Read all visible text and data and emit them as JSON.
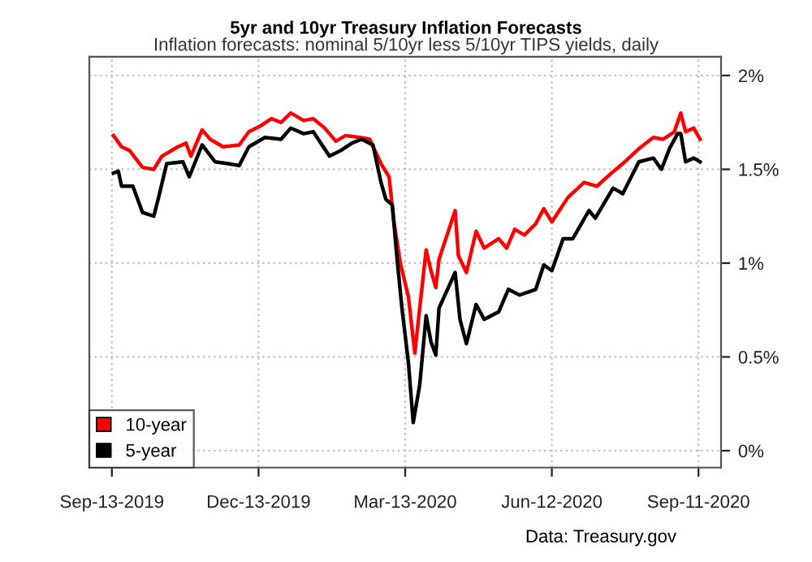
{
  "chart_data": {
    "type": "line",
    "title": "5yr and 10yr Treasury Inflation Forecasts",
    "subtitle": "Inflation forecasts: nominal 5/10yr less 5/10yr TIPS yields, daily",
    "annotations": [
      "Data: Treasury.gov"
    ],
    "xlim": [
      "2019-08-30",
      "2020-09-25"
    ],
    "xticks": [
      {
        "value": "2019-09-13",
        "label": "Sep-13-2019"
      },
      {
        "value": "2019-12-13",
        "label": "Dec-13-2019"
      },
      {
        "value": "2020-03-13",
        "label": "Mar-13-2020"
      },
      {
        "value": "2020-06-12",
        "label": "Jun-12-2020"
      },
      {
        "value": "2020-09-11",
        "label": "Sep-11-2020"
      }
    ],
    "ylim": [
      -0.09,
      2.1
    ],
    "yticks": [
      {
        "value": 0,
        "label": "0%"
      },
      {
        "value": 0.5,
        "label": "0.5%"
      },
      {
        "value": 1,
        "label": "1%"
      },
      {
        "value": 1.5,
        "label": "1.5%"
      },
      {
        "value": 2,
        "label": "2%"
      }
    ],
    "grid": true,
    "legend": "bottom left",
    "line_style": "solid",
    "series": [
      {
        "name": "10-year",
        "color": "#ff0000",
        "x": [
          "2019-09-14",
          "2019-09-19",
          "2019-09-24",
          "2019-10-02",
          "2019-10-09",
          "2019-10-14",
          "2019-10-24",
          "2019-10-29",
          "2019-11-01",
          "2019-11-08",
          "2019-11-13",
          "2019-11-21",
          "2019-12-01",
          "2019-12-07",
          "2019-12-14",
          "2019-12-21",
          "2019-12-27",
          "2020-01-02",
          "2020-01-10",
          "2020-01-16",
          "2020-01-23",
          "2020-01-30",
          "2020-02-05",
          "2020-02-14",
          "2020-02-20",
          "2020-02-27",
          "2020-03-03",
          "2020-03-06",
          "2020-03-10",
          "2020-03-15",
          "2020-03-19",
          "2020-03-22",
          "2020-03-26",
          "2020-03-29",
          "2020-04-01",
          "2020-04-03",
          "2020-04-13",
          "2020-04-15",
          "2020-04-20",
          "2020-04-26",
          "2020-05-01",
          "2020-05-10",
          "2020-05-15",
          "2020-05-20",
          "2020-05-26",
          "2020-06-02",
          "2020-06-07",
          "2020-06-12",
          "2020-06-22",
          "2020-07-02",
          "2020-07-10",
          "2020-07-19",
          "2020-07-26",
          "2020-08-05",
          "2020-08-14",
          "2020-08-20",
          "2020-08-27",
          "2020-08-31",
          "2020-09-03",
          "2020-09-08",
          "2020-09-12"
        ],
        "values": [
          1.68,
          1.62,
          1.6,
          1.51,
          1.5,
          1.57,
          1.62,
          1.64,
          1.57,
          1.71,
          1.66,
          1.62,
          1.63,
          1.7,
          1.73,
          1.77,
          1.75,
          1.8,
          1.76,
          1.77,
          1.72,
          1.65,
          1.68,
          1.67,
          1.66,
          1.53,
          1.46,
          1.22,
          1.0,
          0.82,
          0.52,
          0.76,
          1.07,
          0.96,
          0.87,
          1.02,
          1.28,
          1.04,
          0.95,
          1.17,
          1.08,
          1.13,
          1.08,
          1.18,
          1.15,
          1.21,
          1.29,
          1.22,
          1.35,
          1.43,
          1.41,
          1.48,
          1.53,
          1.61,
          1.67,
          1.66,
          1.7,
          1.8,
          1.7,
          1.72,
          1.66
        ]
      },
      {
        "name": "5-year",
        "color": "#000000",
        "x": [
          "2019-09-14",
          "2019-09-17",
          "2019-09-19",
          "2019-09-26",
          "2019-10-02",
          "2019-10-09",
          "2019-10-12",
          "2019-10-17",
          "2019-10-27",
          "2019-10-31",
          "2019-11-08",
          "2019-11-16",
          "2019-11-24",
          "2019-12-01",
          "2019-12-07",
          "2019-12-17",
          "2019-12-27",
          "2020-01-02",
          "2020-01-10",
          "2020-01-16",
          "2020-01-26",
          "2020-02-02",
          "2020-02-09",
          "2020-02-15",
          "2020-02-22",
          "2020-02-27",
          "2020-03-01",
          "2020-03-05",
          "2020-03-08",
          "2020-03-11",
          "2020-03-15",
          "2020-03-18",
          "2020-03-22",
          "2020-03-26",
          "2020-03-29",
          "2020-04-01",
          "2020-04-03",
          "2020-04-13",
          "2020-04-16",
          "2020-04-20",
          "2020-04-26",
          "2020-05-01",
          "2020-05-10",
          "2020-05-16",
          "2020-05-23",
          "2020-06-02",
          "2020-06-07",
          "2020-06-12",
          "2020-06-19",
          "2020-06-25",
          "2020-07-05",
          "2020-07-09",
          "2020-07-20",
          "2020-07-26",
          "2020-08-05",
          "2020-08-14",
          "2020-08-19",
          "2020-08-24",
          "2020-08-29",
          "2020-08-31",
          "2020-09-03",
          "2020-09-08",
          "2020-09-12"
        ],
        "values": [
          1.48,
          1.49,
          1.41,
          1.41,
          1.27,
          1.25,
          1.35,
          1.53,
          1.54,
          1.46,
          1.63,
          1.54,
          1.53,
          1.52,
          1.62,
          1.67,
          1.66,
          1.72,
          1.69,
          1.7,
          1.57,
          1.6,
          1.64,
          1.66,
          1.63,
          1.43,
          1.34,
          1.31,
          1.02,
          0.76,
          0.47,
          0.15,
          0.35,
          0.72,
          0.58,
          0.51,
          0.76,
          0.95,
          0.7,
          0.57,
          0.78,
          0.7,
          0.74,
          0.86,
          0.83,
          0.86,
          0.99,
          0.96,
          1.13,
          1.13,
          1.28,
          1.24,
          1.4,
          1.37,
          1.54,
          1.56,
          1.5,
          1.61,
          1.69,
          1.69,
          1.54,
          1.56,
          1.54
        ]
      }
    ]
  }
}
